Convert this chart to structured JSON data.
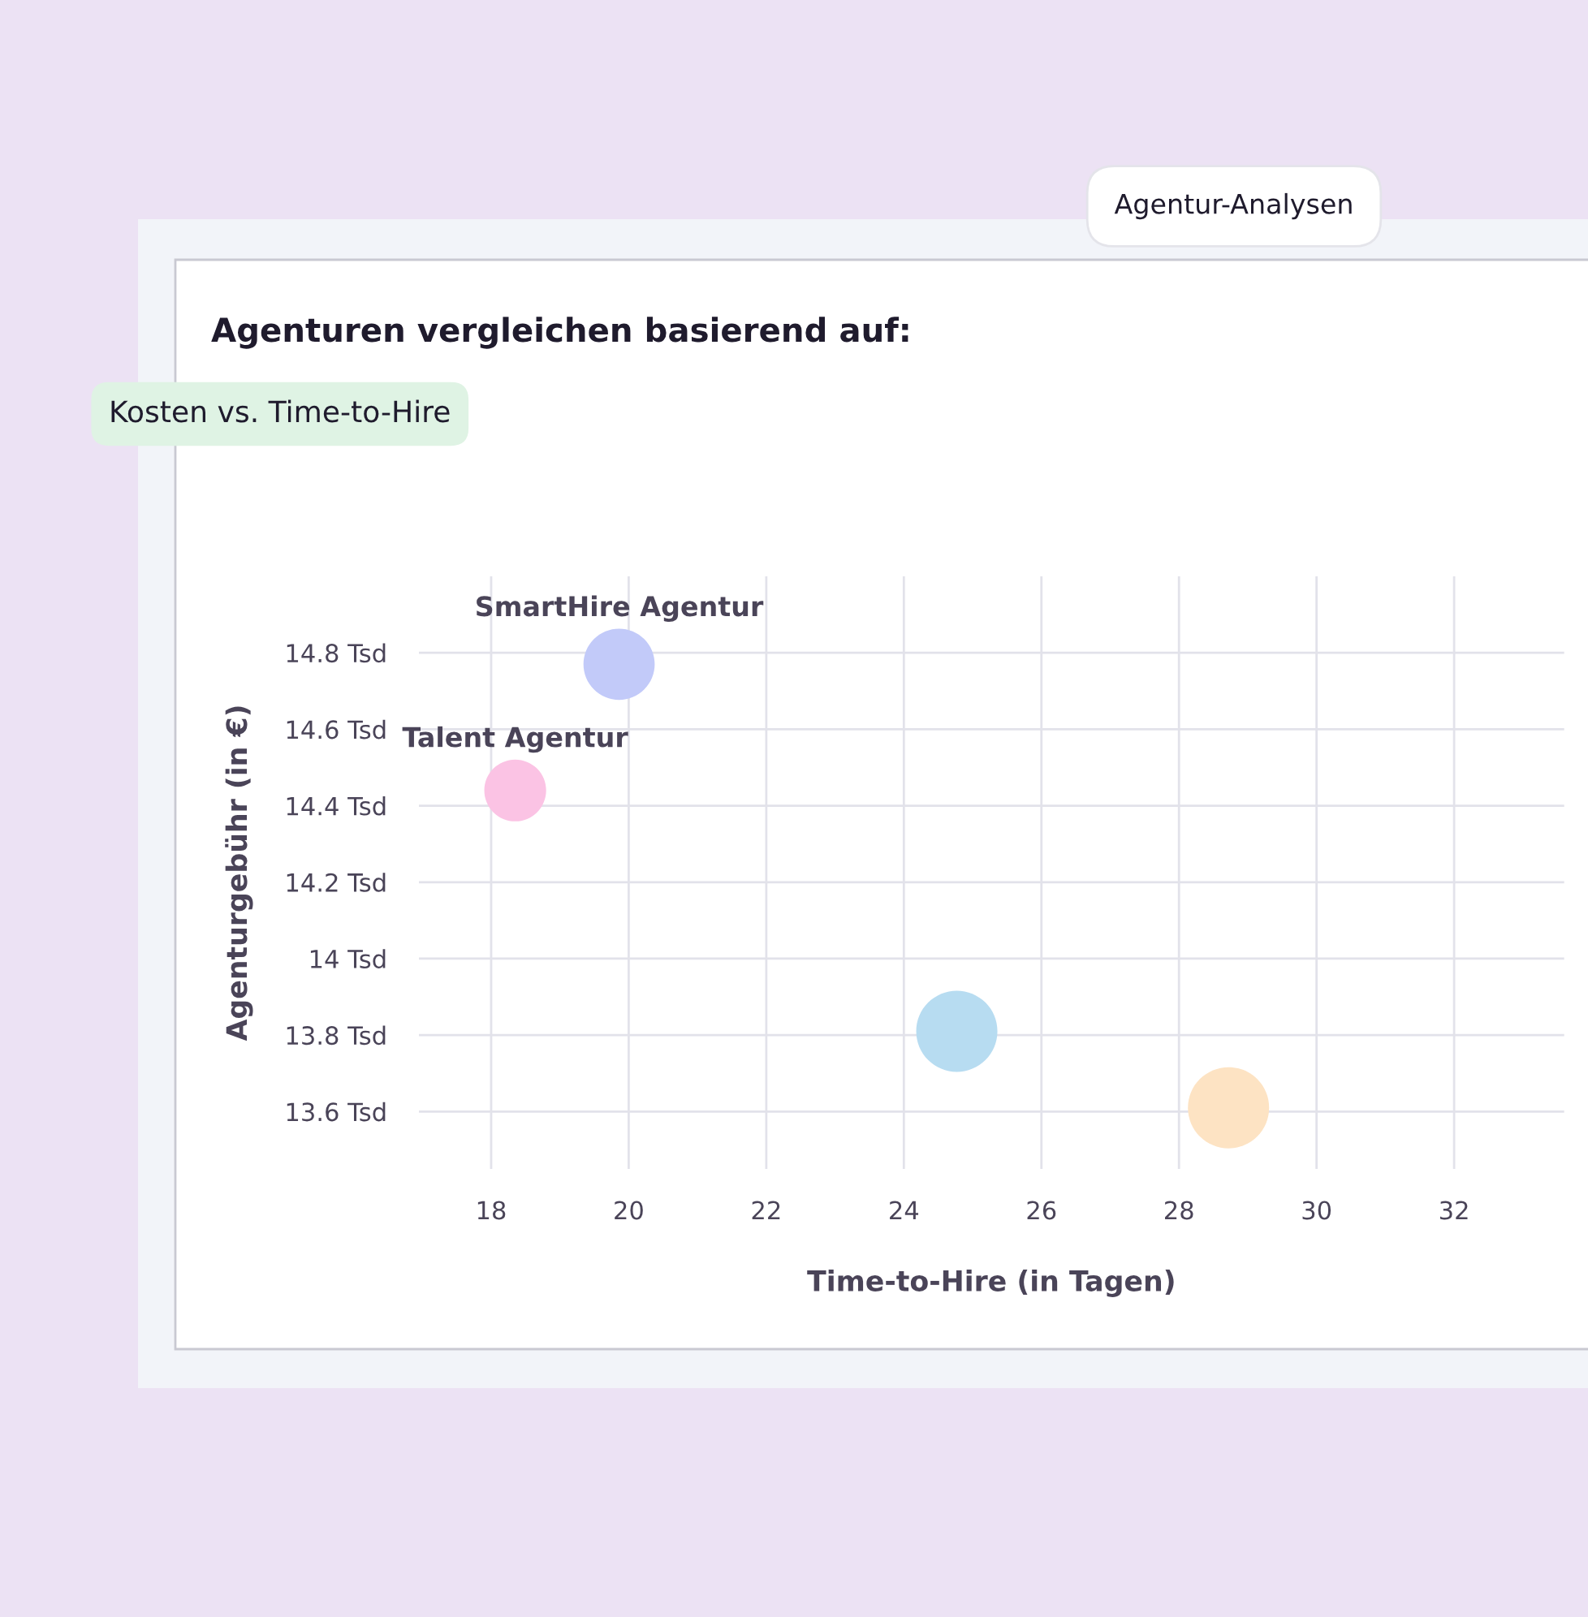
{
  "chart_data": {
    "type": "bubble",
    "title": "Agenturen vergleichen basierend auf:",
    "subtitle": "Kosten vs. Time-to-Hire",
    "annotations": [
      "Agentur-Analysen"
    ],
    "xlabel": "Time-to-Hire (in Tagen)",
    "ylabel": "Agenturgebühr (in €)",
    "series": [
      {
        "name": "SmartHire Agentur",
        "color": "#c2caf9",
        "x": [
          19.86
        ],
        "values": [
          14.77
        ],
        "sizes": [
          0.77
        ]
      },
      {
        "name": "Talent Agentur",
        "color": "#fbc3e4",
        "x": [
          18.35
        ],
        "values": [
          14.44
        ],
        "sizes": [
          0.58
        ]
      },
      {
        "color": "#b7dcf1",
        "x": [
          24.77
        ],
        "values": [
          13.81
        ],
        "sizes": [
          1
        ]
      },
      {
        "color": "#fde3c3",
        "x": [
          28.72
        ],
        "values": [
          13.61
        ],
        "sizes": [
          1
        ]
      }
    ],
    "xlim": [
      16.95,
      33.6
    ],
    "xticks": [
      18,
      20,
      22,
      24,
      26,
      28,
      30,
      32
    ],
    "ylim": [
      13.45,
      15.0
    ],
    "yticks": [
      {
        "value": 13.6,
        "label": "13.6 Tsd"
      },
      {
        "value": 13.8,
        "label": "13.8 Tsd"
      },
      {
        "value": 14,
        "label": "14 Tsd"
      },
      {
        "value": 14.2,
        "label": "14.2 Tsd"
      },
      {
        "value": 14.4,
        "label": "14.4 Tsd"
      },
      {
        "value": 14.6,
        "label": "14.6 Tsd"
      },
      {
        "value": 14.8,
        "label": "14.8 Tsd"
      }
    ],
    "grid": true,
    "legend": false
  }
}
